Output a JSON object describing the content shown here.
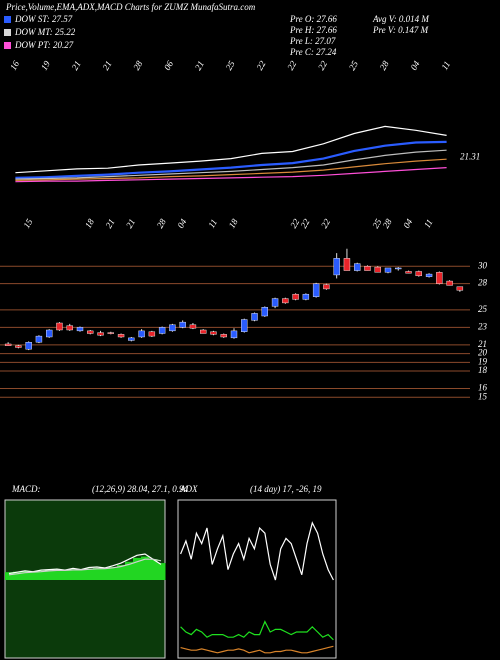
{
  "header": {
    "title": "Price,Volume,EMA,ADX,MACD Charts for ZUMZ MunafaSutra.com",
    "legend": [
      {
        "label": "DOW ST: 27.57",
        "color": "#2a5cff"
      },
      {
        "label": "DOW MT: 25.22",
        "color": "#d8d8d8"
      },
      {
        "label": "DOW PT: 20.27",
        "color": "#ff4fd8"
      }
    ],
    "stats": [
      "Pre  O: 27.66",
      "Pre  H: 27.66",
      "Pre  L: 27.07",
      "Pre  C: 27.24"
    ],
    "volume": [
      "Avg V: 0.014  M",
      "Pre  V: 0.147  M"
    ]
  },
  "chart_data": [
    {
      "type": "line",
      "ylim": [
        16,
        37
      ],
      "annotation": "21.31",
      "categories": [
        "16",
        "19",
        "21",
        "21",
        "28",
        "06",
        "21",
        "25",
        "22",
        "22",
        "22",
        "25",
        "28",
        "04",
        "11"
      ],
      "series": [
        {
          "color": "#ffffff",
          "values": [
            21.8,
            22.1,
            22.4,
            22.5,
            23.0,
            23.3,
            23.6,
            24.0,
            24.8,
            25.1,
            26.3,
            27.9,
            29.0,
            28.4,
            27.6
          ]
        },
        {
          "color": "#2a5cff",
          "values": [
            21.0,
            21.1,
            21.3,
            21.5,
            21.8,
            22.0,
            22.3,
            22.6,
            23.0,
            23.3,
            24.0,
            25.2,
            26.0,
            26.5,
            26.6
          ]
        },
        {
          "color": "#bdbdbd",
          "values": [
            20.8,
            20.9,
            21.0,
            21.2,
            21.4,
            21.6,
            21.8,
            22.0,
            22.3,
            22.6,
            23.0,
            23.8,
            24.5,
            25.0,
            25.3
          ]
        },
        {
          "color": "#d98a3a",
          "values": [
            20.6,
            20.7,
            20.8,
            20.9,
            21.0,
            21.2,
            21.3,
            21.5,
            21.7,
            21.9,
            22.2,
            22.7,
            23.2,
            23.6,
            23.9
          ]
        },
        {
          "color": "#ff4fd8",
          "values": [
            20.4,
            20.5,
            20.5,
            20.6,
            20.7,
            20.8,
            20.9,
            21.0,
            21.1,
            21.2,
            21.4,
            21.7,
            22.0,
            22.3,
            22.6
          ]
        }
      ]
    },
    {
      "type": "candlestick",
      "ylim": [
        14,
        33
      ],
      "yticks": [
        30,
        28,
        25,
        23,
        21,
        20,
        19,
        18,
        16,
        15
      ],
      "up_color": "#2a5cff",
      "down_color": "#e8242a",
      "grid_color": "#8b4a2b",
      "categories": [
        null,
        null,
        "15",
        null,
        null,
        null,
        null,
        null,
        "18",
        null,
        "21",
        null,
        "21",
        null,
        null,
        "28",
        null,
        "04",
        null,
        null,
        "11",
        null,
        "18",
        null,
        null,
        null,
        null,
        null,
        "22",
        "22",
        null,
        "22",
        null,
        null,
        null,
        null,
        "25",
        "28",
        null,
        "04",
        null,
        "11",
        null,
        null,
        null
      ],
      "open": [
        21.1,
        20.9,
        20.5,
        21.3,
        21.9,
        23.5,
        23.2,
        22.6,
        22.6,
        22.4,
        22.4,
        22.2,
        21.5,
        21.9,
        22.5,
        22.3,
        22.6,
        23.0,
        23.3,
        22.7,
        22.5,
        22.2,
        21.8,
        22.5,
        23.8,
        24.3,
        25.4,
        26.3,
        26.8,
        26.2,
        26.5,
        27.9,
        29.0,
        30.9,
        29.5,
        30.0,
        29.9,
        29.3,
        29.7,
        29.4,
        29.4,
        28.8,
        29.3,
        28.3,
        27.66
      ],
      "high": [
        21.3,
        21.0,
        21.4,
        22.1,
        22.8,
        23.6,
        23.4,
        23.1,
        22.7,
        22.6,
        22.5,
        22.3,
        21.9,
        22.8,
        22.6,
        23.1,
        23.4,
        23.8,
        23.5,
        22.8,
        22.6,
        22.3,
        22.9,
        24.0,
        24.7,
        25.4,
        26.4,
        26.4,
        26.9,
        26.9,
        28.1,
        28.0,
        31.5,
        32.0,
        30.4,
        30.1,
        30.0,
        29.8,
        29.9,
        29.5,
        29.5,
        29.2,
        29.4,
        28.4,
        27.66
      ],
      "low": [
        20.9,
        20.6,
        20.4,
        21.2,
        21.8,
        22.6,
        22.6,
        22.5,
        22.2,
        22.0,
        22.2,
        21.8,
        21.4,
        21.8,
        21.9,
        22.2,
        22.5,
        22.9,
        22.8,
        22.3,
        22.1,
        21.8,
        21.7,
        22.4,
        23.7,
        24.2,
        25.2,
        25.7,
        26.1,
        26.1,
        26.4,
        27.3,
        28.6,
        29.5,
        29.4,
        29.5,
        29.3,
        29.2,
        29.5,
        29.2,
        28.8,
        28.7,
        27.9,
        27.8,
        27.07
      ],
      "close": [
        20.9,
        20.7,
        21.3,
        22.0,
        22.7,
        22.7,
        22.7,
        23.0,
        22.3,
        22.1,
        22.3,
        21.9,
        21.8,
        22.6,
        22.0,
        23.0,
        23.3,
        23.6,
        22.9,
        22.3,
        22.2,
        21.9,
        22.6,
        23.9,
        24.6,
        25.3,
        26.3,
        25.8,
        26.2,
        26.8,
        28.0,
        27.4,
        30.9,
        29.5,
        30.3,
        29.5,
        29.3,
        29.8,
        29.8,
        29.2,
        28.9,
        29.1,
        28.0,
        27.8,
        27.24
      ]
    },
    {
      "type": "line",
      "title": "MACD:",
      "subtitle": "(12,26,9) 28.04, 27.1, 0.94",
      "ylim": [
        -30,
        30
      ],
      "background": "#0b3a0b",
      "series": [
        {
          "kind": "bar",
          "color": "#22d622",
          "values": [
            3,
            3.2,
            3.4,
            3.3,
            3.5,
            3.8,
            4,
            3.9,
            4.2,
            4.1,
            4.4,
            4.6,
            4.5,
            5,
            5.8,
            7,
            8.5,
            9,
            8,
            6.5
          ]
        },
        {
          "color": "#ffffff",
          "values": [
            2.5,
            3,
            3.5,
            3.2,
            3.8,
            4,
            4.2,
            3.8,
            4.5,
            4,
            4.8,
            5,
            4.6,
            5.5,
            6.5,
            8,
            9.5,
            10,
            8,
            6
          ]
        },
        {
          "color": "#cfcfcf",
          "values": [
            2,
            2.4,
            2.8,
            3,
            3.2,
            3.5,
            3.7,
            3.7,
            3.9,
            3.9,
            4.1,
            4.3,
            4.4,
            4.7,
            5.2,
            6,
            7,
            8,
            8,
            7.4
          ]
        }
      ]
    },
    {
      "type": "line",
      "title": "ADX",
      "subtitle": "(14 day) 17, -26, 19",
      "ylim": [
        0,
        60
      ],
      "background": "#000000",
      "series": [
        {
          "color": "#ffffff",
          "values": [
            40,
            45,
            38,
            48,
            44,
            50,
            36,
            42,
            47,
            34,
            40,
            44,
            38,
            46,
            42,
            50,
            48,
            36,
            30,
            42,
            46,
            44,
            38,
            32,
            44,
            52,
            48,
            40,
            34,
            30
          ]
        },
        {
          "color": "#1fe01f",
          "values": [
            12,
            10,
            9,
            11,
            10,
            8,
            9,
            9,
            9,
            8,
            8,
            9,
            8,
            10,
            9,
            9,
            14,
            10,
            11,
            11,
            10,
            9,
            10,
            10,
            10,
            12,
            10,
            8,
            9,
            7
          ]
        },
        {
          "color": "#d9842a",
          "values": [
            4,
            3.5,
            3,
            3,
            3.5,
            3,
            2.5,
            2,
            2.5,
            3,
            3,
            3.5,
            3,
            2,
            2.5,
            3,
            2,
            2,
            2.5,
            2.5,
            3,
            3,
            2.5,
            2,
            2,
            2.5,
            3,
            3.5,
            4,
            4.5
          ]
        }
      ]
    }
  ]
}
